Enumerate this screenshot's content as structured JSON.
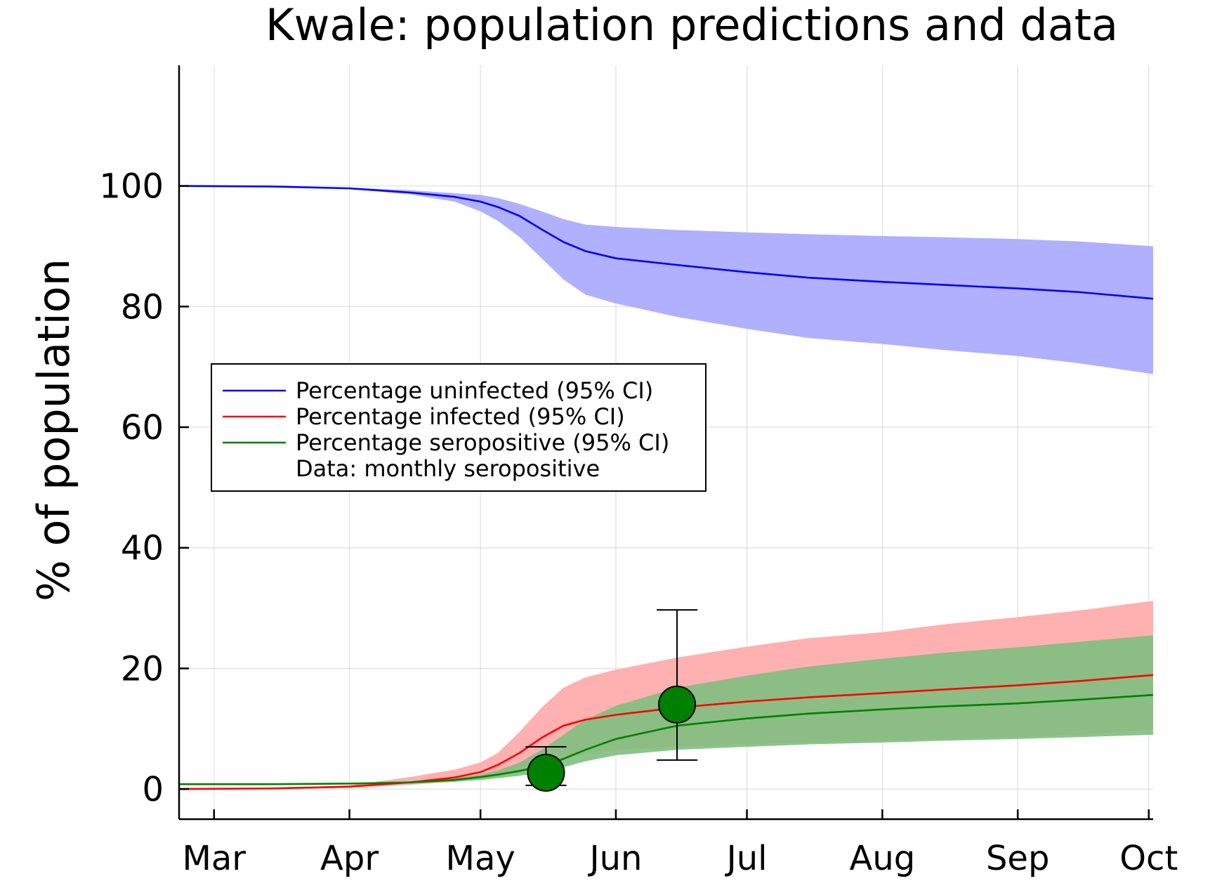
{
  "chart_data": {
    "type": "line",
    "title": "Kwale: population predictions and data",
    "xlabel": "",
    "ylabel": "% of population",
    "x_axis": {
      "type": "date",
      "range": [
        "2020-02-22",
        "2020-10-02"
      ],
      "ticks": [
        {
          "date": "2020-03-01",
          "label": "Mar"
        },
        {
          "date": "2020-04-01",
          "label": "Apr"
        },
        {
          "date": "2020-05-01",
          "label": "May"
        },
        {
          "date": "2020-06-01",
          "label": "Jun"
        },
        {
          "date": "2020-07-01",
          "label": "Jul"
        },
        {
          "date": "2020-08-01",
          "label": "Aug"
        },
        {
          "date": "2020-09-01",
          "label": "Sep"
        },
        {
          "date": "2020-10-01",
          "label": "Oct"
        }
      ]
    },
    "y_axis": {
      "range": [
        -5,
        120
      ],
      "ticks": [
        0,
        20,
        40,
        60,
        80,
        100
      ]
    },
    "grid": true,
    "legend_position": "left",
    "series": [
      {
        "name": "Percentage uninfected (95% CI)",
        "color": "#0000ff",
        "band_color": "#b0b0ff",
        "x": [
          "2020-02-22",
          "2020-03-15",
          "2020-04-01",
          "2020-04-15",
          "2020-04-25",
          "2020-05-01",
          "2020-05-05",
          "2020-05-10",
          "2020-05-15",
          "2020-05-20",
          "2020-05-25",
          "2020-06-01",
          "2020-06-15",
          "2020-07-01",
          "2020-07-15",
          "2020-08-01",
          "2020-08-15",
          "2020-09-01",
          "2020-09-15",
          "2020-10-02"
        ],
        "values": [
          100,
          99.9,
          99.6,
          98.9,
          98.2,
          97.4,
          96.5,
          95.0,
          92.8,
          90.7,
          89.2,
          88.0,
          86.9,
          85.7,
          84.8,
          84.1,
          83.6,
          83.0,
          82.4,
          81.3
        ],
        "lower": [
          100,
          99.9,
          99.5,
          98.6,
          97.4,
          95.8,
          94.2,
          91.5,
          88.0,
          84.5,
          82.0,
          80.5,
          78.3,
          76.3,
          74.8,
          73.8,
          72.8,
          71.8,
          70.6,
          68.8
        ],
        "upper": [
          100,
          99.9,
          99.7,
          99.3,
          98.8,
          98.5,
          98.0,
          97.0,
          95.8,
          94.5,
          93.6,
          93.2,
          92.7,
          92.3,
          92.0,
          91.7,
          91.5,
          91.2,
          90.8,
          90.0
        ]
      },
      {
        "name": "Percentage infected (95% CI)",
        "color": "#ff0000",
        "band_color": "#ffb0b0",
        "x": [
          "2020-02-22",
          "2020-03-15",
          "2020-04-01",
          "2020-04-15",
          "2020-04-25",
          "2020-05-01",
          "2020-05-05",
          "2020-05-10",
          "2020-05-15",
          "2020-05-20",
          "2020-05-25",
          "2020-06-01",
          "2020-06-15",
          "2020-07-01",
          "2020-07-15",
          "2020-08-01",
          "2020-08-15",
          "2020-09-01",
          "2020-09-15",
          "2020-10-02"
        ],
        "values": [
          0.0,
          0.1,
          0.4,
          1.1,
          1.9,
          2.8,
          4.0,
          6.0,
          8.5,
          10.5,
          11.5,
          12.3,
          13.5,
          14.5,
          15.2,
          15.9,
          16.5,
          17.2,
          17.9,
          18.9
        ],
        "lower": [
          0.0,
          0.0,
          0.2,
          0.7,
          1.2,
          1.6,
          2.0,
          2.8,
          4.0,
          5.0,
          5.8,
          6.5,
          7.0,
          7.4,
          7.7,
          8.0,
          8.3,
          8.6,
          9.0,
          9.9
        ],
        "upper": [
          0.0,
          0.1,
          0.6,
          2.0,
          3.2,
          4.4,
          6.0,
          9.5,
          13.5,
          16.8,
          18.5,
          19.8,
          21.8,
          23.6,
          25.0,
          26.0,
          27.3,
          28.5,
          29.6,
          31.2
        ]
      },
      {
        "name": "Percentage seropositive (95% CI)",
        "color": "#008000",
        "band_color": "#7fbf7f",
        "x": [
          "2020-02-22",
          "2020-03-15",
          "2020-04-01",
          "2020-04-15",
          "2020-04-25",
          "2020-05-01",
          "2020-05-05",
          "2020-05-10",
          "2020-05-15",
          "2020-05-20",
          "2020-05-25",
          "2020-06-01",
          "2020-06-15",
          "2020-07-01",
          "2020-07-15",
          "2020-08-01",
          "2020-08-15",
          "2020-09-01",
          "2020-09-15",
          "2020-10-02"
        ],
        "values": [
          0.8,
          0.8,
          0.9,
          1.1,
          1.5,
          2.0,
          2.4,
          3.0,
          3.8,
          5.0,
          6.5,
          8.3,
          10.5,
          11.7,
          12.5,
          13.2,
          13.7,
          14.2,
          14.8,
          15.6
        ],
        "lower": [
          0.8,
          0.8,
          0.8,
          0.9,
          1.2,
          1.5,
          1.8,
          2.2,
          2.8,
          3.6,
          4.6,
          5.6,
          6.5,
          7.0,
          7.4,
          7.7,
          8.0,
          8.3,
          8.6,
          9.0
        ],
        "upper": [
          0.8,
          0.8,
          1.0,
          1.3,
          1.8,
          2.4,
          3.1,
          4.4,
          6.5,
          9.0,
          11.5,
          13.8,
          16.8,
          18.8,
          20.3,
          21.6,
          22.6,
          23.5,
          24.4,
          25.5
        ]
      }
    ],
    "data_points": {
      "name": "Data: monthly seropositive",
      "color": "#008000",
      "points": [
        {
          "x": "2020-05-16",
          "y": 2.7,
          "lower": 0.6,
          "upper": 7.0
        },
        {
          "x": "2020-06-15",
          "y": 14.0,
          "lower": 4.8,
          "upper": 29.7
        }
      ]
    }
  }
}
